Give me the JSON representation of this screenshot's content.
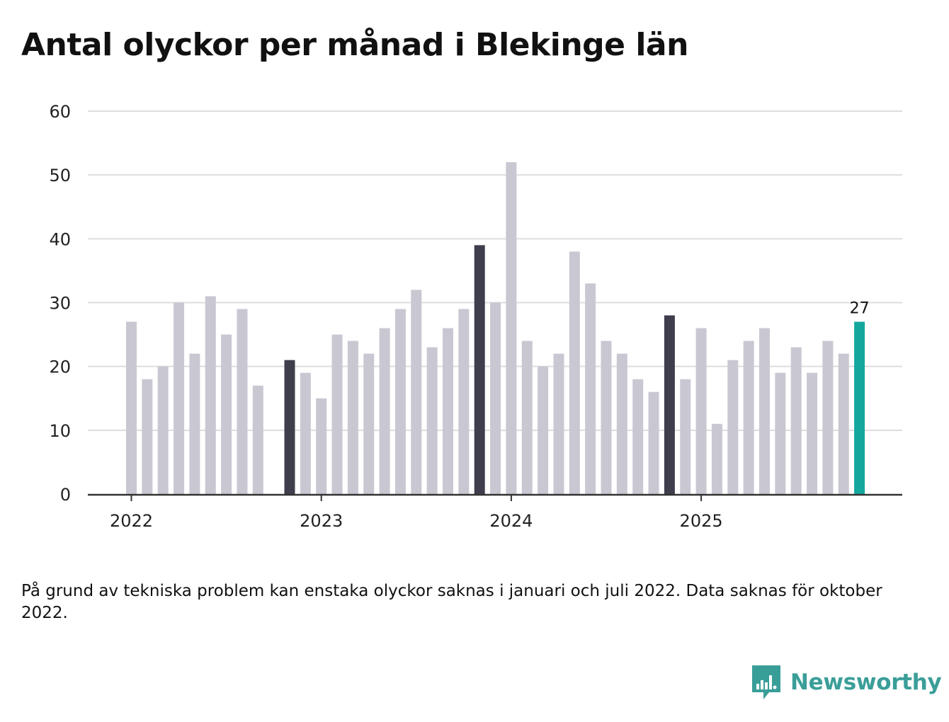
{
  "chart_data": {
    "type": "bar",
    "title": "Antal olyckor per månad i Blekinge län",
    "xlabel": "",
    "ylabel": "",
    "ylim": [
      0,
      60
    ],
    "yticks": [
      "0",
      "10",
      "20",
      "30",
      "40",
      "50",
      "60"
    ],
    "xticks": [
      "2022",
      "2023",
      "2024",
      "2025"
    ],
    "categories": [
      "2022-01",
      "2022-02",
      "2022-03",
      "2022-04",
      "2022-05",
      "2022-06",
      "2022-07",
      "2022-08",
      "2022-09",
      "2022-10",
      "2022-11",
      "2022-12",
      "2023-01",
      "2023-02",
      "2023-03",
      "2023-04",
      "2023-05",
      "2023-06",
      "2023-07",
      "2023-08",
      "2023-09",
      "2023-10",
      "2023-11",
      "2023-12",
      "2024-01",
      "2024-02",
      "2024-03",
      "2024-04",
      "2024-05",
      "2024-06",
      "2024-07",
      "2024-08",
      "2024-09",
      "2024-10",
      "2024-11",
      "2024-12",
      "2025-01",
      "2025-02",
      "2025-03",
      "2025-04",
      "2025-05",
      "2025-06",
      "2025-07",
      "2025-08",
      "2025-09",
      "2025-10",
      "2025-11",
      "2025-12"
    ],
    "values": [
      27,
      18,
      20,
      30,
      22,
      31,
      25,
      29,
      17,
      null,
      21,
      19,
      15,
      25,
      24,
      22,
      26,
      29,
      32,
      23,
      26,
      29,
      39,
      30,
      52,
      24,
      20,
      22,
      38,
      33,
      24,
      22,
      18,
      16,
      28,
      18,
      26,
      11,
      21,
      24,
      26,
      19,
      23,
      19,
      24,
      22,
      27,
      null
    ],
    "highlight_months": [
      "2022-11",
      "2023-11",
      "2024-11"
    ],
    "current_month": "2025-11",
    "data_labels": [
      {
        "category": "2025-11",
        "text": "27"
      }
    ],
    "colors": {
      "default": "#c9c8d2",
      "highlight": "#3f3e4d",
      "current": "#14a79e",
      "grid": "#dddddd",
      "axis": "#333333"
    }
  },
  "footnote": "På grund av tekniska problem kan enstaka olyckor saknas i januari och juli 2022. Data saknas för oktober 2022.",
  "brand": {
    "name": "Newsworthy",
    "icon": "newsworthy-logo-icon",
    "color": "#3a9e98"
  }
}
